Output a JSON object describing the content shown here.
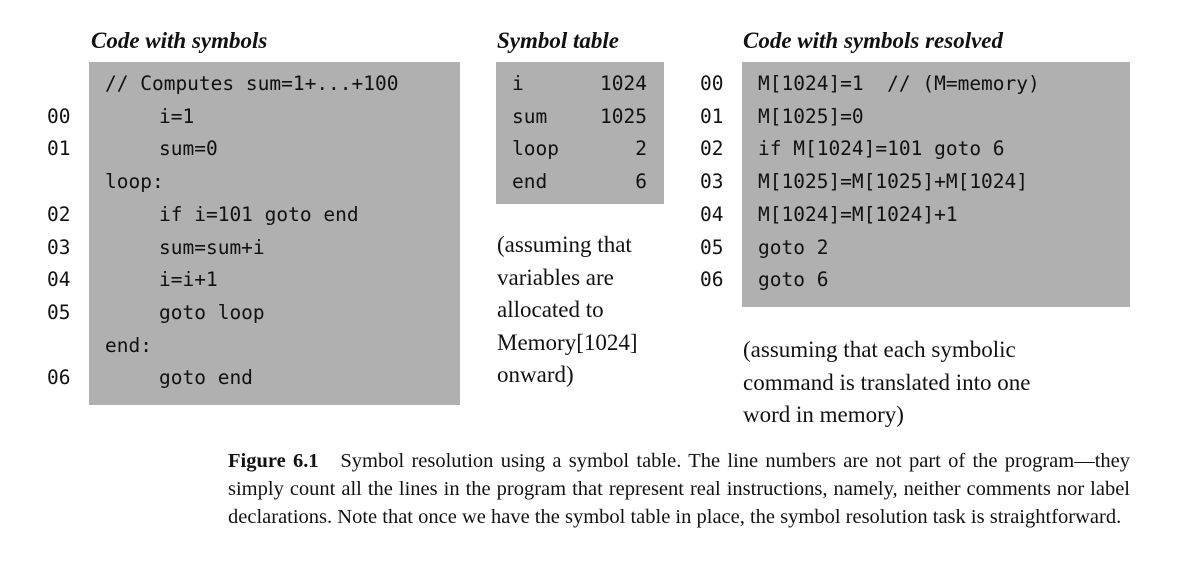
{
  "code": {
    "heading": "Code with symbols",
    "lines": [
      {
        "num": "",
        "text": "// Computes sum=1+...+100",
        "indent": false
      },
      {
        "num": "00",
        "text": "i=1",
        "indent": true
      },
      {
        "num": "01",
        "text": "sum=0",
        "indent": true
      },
      {
        "num": "",
        "text": "loop:",
        "indent": false
      },
      {
        "num": "02",
        "text": "if i=101 goto end",
        "indent": true
      },
      {
        "num": "03",
        "text": "sum=sum+i",
        "indent": true
      },
      {
        "num": "04",
        "text": "i=i+1",
        "indent": true
      },
      {
        "num": "05",
        "text": "goto loop",
        "indent": true
      },
      {
        "num": "",
        "text": "end:",
        "indent": false
      },
      {
        "num": "06",
        "text": "goto end",
        "indent": true
      }
    ]
  },
  "symbol_table": {
    "heading": "Symbol table",
    "rows": [
      {
        "symbol": "i",
        "address": "1024"
      },
      {
        "symbol": "sum",
        "address": "1025"
      },
      {
        "symbol": "loop",
        "address": "2"
      },
      {
        "symbol": "end",
        "address": "6"
      }
    ],
    "note": [
      "(assuming that",
      "variables are",
      "allocated to",
      "Memory[1024]",
      "onward)"
    ]
  },
  "resolved": {
    "heading": "Code with symbols resolved",
    "lines": [
      {
        "num": "00",
        "text": "M[1024]=1  // (M=memory)"
      },
      {
        "num": "01",
        "text": "M[1025]=0"
      },
      {
        "num": "02",
        "text": "if M[1024]=101 goto 6"
      },
      {
        "num": "03",
        "text": "M[1025]=M[1025]+M[1024]"
      },
      {
        "num": "04",
        "text": "M[1024]=M[1024]+1"
      },
      {
        "num": "05",
        "text": "goto 2"
      },
      {
        "num": "06",
        "text": "goto 6"
      }
    ],
    "note": [
      "(assuming that each symbolic",
      "command is translated into one",
      "word in memory)"
    ]
  },
  "caption": {
    "label": "Figure 6.1",
    "text": "Symbol resolution using a symbol table. The line numbers are not part of the program—they simply count all the lines in the program that represent real instructions, namely, neither comments nor label declarations. Note that once we have the symbol table in place, the symbol resolution task is straightforward."
  }
}
